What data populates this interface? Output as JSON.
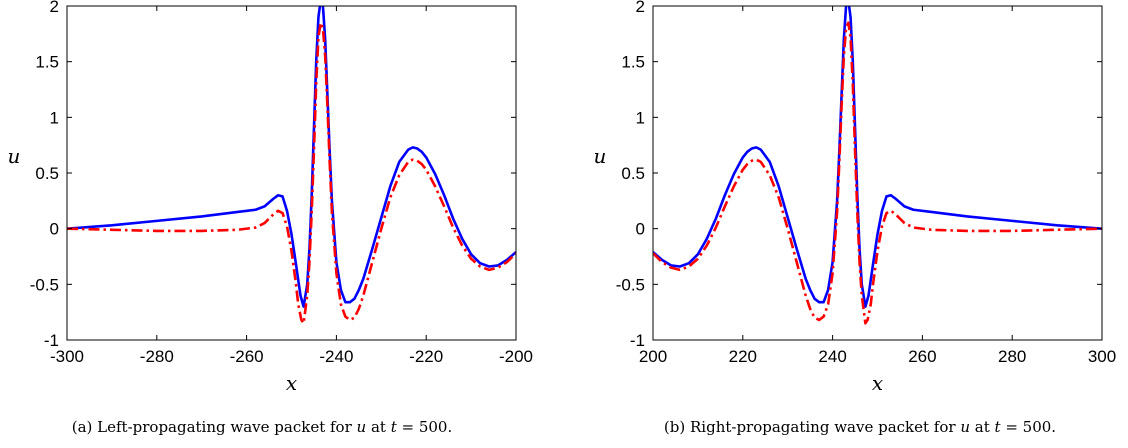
{
  "chart_data": [
    {
      "type": "line",
      "caption": {
        "prefix": "(a) Left-propagating wave packet for ",
        "var": "u",
        "mid": " at ",
        "tvar": "t",
        "suffix": " = 500."
      },
      "xlabel": "x",
      "ylabel": "u",
      "xlim": [
        -300,
        -200
      ],
      "ylim": [
        -1,
        2
      ],
      "xticks": [
        -300,
        -280,
        -260,
        -240,
        -220,
        -200
      ],
      "yticks": [
        -1,
        -0.5,
        0,
        0.5,
        1,
        1.5,
        2
      ],
      "grid": false,
      "series": [
        {
          "style": "solid",
          "color": "#0000ff",
          "x": [
            -300,
            -290,
            -280,
            -270,
            -262,
            -258,
            -256,
            -254,
            -253,
            -252,
            -251,
            -250,
            -249,
            -248,
            -247.3,
            -246.5,
            -246,
            -245.5,
            -245,
            -244.5,
            -244,
            -243.5,
            -243,
            -242.5,
            -242,
            -241.5,
            -241,
            -240,
            -239,
            -238,
            -237,
            -236,
            -235,
            -234,
            -232,
            -230,
            -228,
            -226,
            -224,
            -223,
            -222,
            -221,
            -220,
            -218,
            -216,
            -214,
            -212,
            -210,
            -208,
            -206,
            -204,
            -202,
            -200
          ],
          "y": [
            0.0,
            0.03,
            0.07,
            0.11,
            0.15,
            0.17,
            0.2,
            0.27,
            0.3,
            0.29,
            0.16,
            -0.05,
            -0.32,
            -0.6,
            -0.7,
            -0.5,
            -0.18,
            0.3,
            0.9,
            1.5,
            1.9,
            2.05,
            2.0,
            1.7,
            1.2,
            0.7,
            0.25,
            -0.3,
            -0.55,
            -0.66,
            -0.66,
            -0.63,
            -0.55,
            -0.45,
            -0.18,
            0.1,
            0.38,
            0.6,
            0.71,
            0.73,
            0.72,
            0.69,
            0.64,
            0.49,
            0.3,
            0.09,
            -0.09,
            -0.23,
            -0.31,
            -0.34,
            -0.33,
            -0.28,
            -0.21
          ]
        },
        {
          "style": "dash-dot",
          "color": "#ff0000",
          "x": [
            -300,
            -290,
            -280,
            -270,
            -262,
            -258,
            -256,
            -254,
            -253,
            -252,
            -251,
            -250,
            -249,
            -248.5,
            -247.8,
            -247.3,
            -246.5,
            -246,
            -245.5,
            -245,
            -244.5,
            -244,
            -243.5,
            -243,
            -242.5,
            -242,
            -241.5,
            -241,
            -240,
            -239,
            -238,
            -237,
            -236,
            -235,
            -234,
            -232,
            -230,
            -228,
            -226,
            -224,
            -223,
            -222,
            -221,
            -220,
            -218,
            -216,
            -214,
            -212,
            -210,
            -208,
            -206,
            -204,
            -202,
            -200
          ],
          "y": [
            0.0,
            -0.01,
            -0.02,
            -0.02,
            -0.01,
            0.01,
            0.05,
            0.13,
            0.16,
            0.14,
            0.02,
            -0.2,
            -0.5,
            -0.68,
            -0.82,
            -0.85,
            -0.6,
            -0.3,
            0.15,
            0.7,
            1.3,
            1.72,
            1.85,
            1.8,
            1.55,
            1.1,
            0.6,
            0.15,
            -0.4,
            -0.68,
            -0.79,
            -0.82,
            -0.8,
            -0.72,
            -0.6,
            -0.3,
            0.0,
            0.28,
            0.48,
            0.6,
            0.62,
            0.61,
            0.58,
            0.53,
            0.38,
            0.2,
            0.01,
            -0.15,
            -0.27,
            -0.34,
            -0.37,
            -0.35,
            -0.3,
            -0.22
          ]
        }
      ]
    },
    {
      "type": "line",
      "caption": {
        "prefix": "(b) Right-propagating wave packet for ",
        "var": "u",
        "mid": " at ",
        "tvar": "t",
        "suffix": " = 500."
      },
      "xlabel": "x",
      "ylabel": "u",
      "xlim": [
        200,
        300
      ],
      "ylim": [
        -1,
        2
      ],
      "xticks": [
        200,
        220,
        240,
        260,
        280,
        300
      ],
      "yticks": [
        -1,
        -0.5,
        0,
        0.5,
        1,
        1.5,
        2
      ],
      "grid": false,
      "series": [
        {
          "style": "solid",
          "color": "#0000ff",
          "x": [
            200,
            202,
            204,
            206,
            208,
            210,
            212,
            214,
            216,
            218,
            220,
            221,
            222,
            223,
            224,
            226,
            228,
            230,
            232,
            234,
            235,
            236,
            237,
            238,
            239,
            240,
            241,
            241.5,
            242,
            242.5,
            243,
            243.5,
            244,
            244.5,
            245,
            245.5,
            246,
            246.5,
            247.3,
            248,
            249,
            250,
            251,
            252,
            253,
            254,
            256,
            258,
            262,
            270,
            280,
            290,
            300
          ],
          "y": [
            -0.21,
            -0.28,
            -0.33,
            -0.34,
            -0.31,
            -0.23,
            -0.09,
            0.09,
            0.3,
            0.49,
            0.64,
            0.69,
            0.72,
            0.73,
            0.71,
            0.6,
            0.38,
            0.1,
            -0.18,
            -0.45,
            -0.55,
            -0.63,
            -0.66,
            -0.66,
            -0.55,
            -0.3,
            0.25,
            0.7,
            1.2,
            1.7,
            2.0,
            2.05,
            1.9,
            1.5,
            0.9,
            0.3,
            -0.18,
            -0.5,
            -0.7,
            -0.6,
            -0.32,
            -0.05,
            0.16,
            0.29,
            0.3,
            0.27,
            0.2,
            0.17,
            0.15,
            0.11,
            0.07,
            0.03,
            0.0
          ]
        },
        {
          "style": "dash-dot",
          "color": "#ff0000",
          "x": [
            200,
            202,
            204,
            206,
            208,
            210,
            212,
            214,
            216,
            218,
            220,
            221,
            222,
            223,
            224,
            226,
            228,
            230,
            232,
            234,
            235,
            236,
            237,
            238,
            239,
            240,
            241,
            241.5,
            242,
            242.5,
            243,
            243.5,
            244,
            244.5,
            245,
            245.5,
            246,
            246.5,
            247.3,
            247.8,
            248.5,
            249,
            250,
            251,
            252,
            253,
            254,
            256,
            258,
            262,
            270,
            280,
            290,
            300
          ],
          "y": [
            -0.22,
            -0.3,
            -0.35,
            -0.37,
            -0.34,
            -0.27,
            -0.15,
            0.01,
            0.2,
            0.38,
            0.53,
            0.58,
            0.61,
            0.62,
            0.6,
            0.48,
            0.28,
            0.0,
            -0.3,
            -0.6,
            -0.72,
            -0.8,
            -0.82,
            -0.79,
            -0.68,
            -0.4,
            0.15,
            0.6,
            1.1,
            1.55,
            1.8,
            1.85,
            1.72,
            1.3,
            0.7,
            0.15,
            -0.3,
            -0.6,
            -0.85,
            -0.82,
            -0.68,
            -0.5,
            -0.2,
            0.02,
            0.14,
            0.16,
            0.13,
            0.05,
            0.01,
            -0.01,
            -0.02,
            -0.02,
            -0.01,
            0.0
          ]
        }
      ]
    }
  ]
}
